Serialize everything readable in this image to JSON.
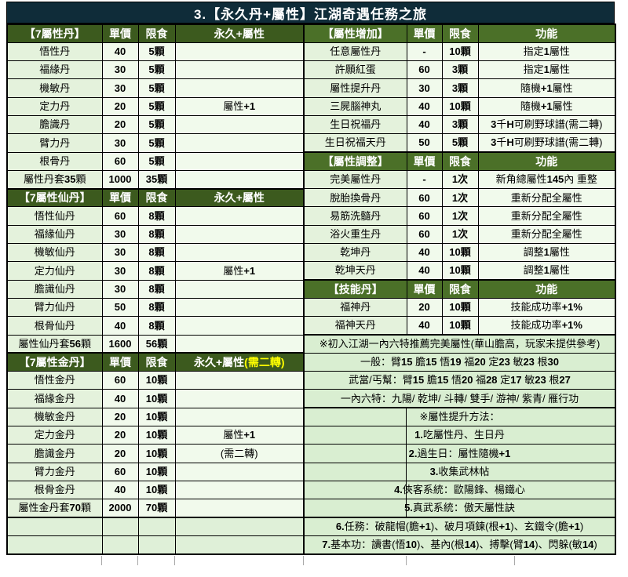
{
  "title": "3.【永久丹+屬性】江湖奇遇任務之旅",
  "title_bar_color": "#0f2c39",
  "left_header_color": "#3c5a1e",
  "right_header_color": "#4b7028",
  "highlight_color": "#ffff00",
  "left_sections": [
    {
      "header": [
        "【7屬性丹】",
        "單價",
        "限食",
        "永久+屬性"
      ],
      "header_highlight": "",
      "rows": [
        [
          "悟性丹",
          "40",
          "5顆",
          ""
        ],
        [
          "福緣丹",
          "30",
          "5顆",
          ""
        ],
        [
          "機敏丹",
          "30",
          "5顆",
          ""
        ],
        [
          "定力丹",
          "20",
          "5顆",
          "屬性+1"
        ],
        [
          "膽識丹",
          "20",
          "5顆",
          ""
        ],
        [
          "臂力丹",
          "30",
          "5顆",
          ""
        ],
        [
          "根骨丹",
          "60",
          "5顆",
          ""
        ],
        [
          "屬性丹套35顆",
          "1000",
          "35顆",
          ""
        ]
      ]
    },
    {
      "header": [
        "【7屬性仙丹】",
        "單價",
        "限食",
        "永久+屬性"
      ],
      "header_highlight": "",
      "rows": [
        [
          "悟性仙丹",
          "60",
          "8顆",
          ""
        ],
        [
          "福緣仙丹",
          "30",
          "8顆",
          ""
        ],
        [
          "機敏仙丹",
          "30",
          "8顆",
          ""
        ],
        [
          "定力仙丹",
          "30",
          "8顆",
          "屬性+1"
        ],
        [
          "膽識仙丹",
          "30",
          "8顆",
          ""
        ],
        [
          "臂力仙丹",
          "50",
          "8顆",
          ""
        ],
        [
          "根骨仙丹",
          "40",
          "8顆",
          ""
        ],
        [
          "屬性仙丹套56顆",
          "1600",
          "56顆",
          ""
        ]
      ]
    },
    {
      "header": [
        "【7屬性金丹】",
        "單價",
        "限食",
        "永久+屬性"
      ],
      "header_highlight": "(需二轉)",
      "rows": [
        [
          "悟性金丹",
          "60",
          "10顆",
          ""
        ],
        [
          "福緣金丹",
          "40",
          "10顆",
          ""
        ],
        [
          "機敏金丹",
          "20",
          "10顆",
          ""
        ],
        [
          "定力金丹",
          "20",
          "10顆",
          "屬性+1"
        ],
        [
          "膽識金丹",
          "20",
          "10顆",
          "(需二轉)"
        ],
        [
          "臂力金丹",
          "60",
          "10顆",
          ""
        ],
        [
          "根骨金丹",
          "40",
          "10顆",
          ""
        ],
        [
          "屬性金丹套70顆",
          "2000",
          "70顆",
          ""
        ]
      ]
    }
  ],
  "left_empty_rows": 2,
  "right_sections": [
    {
      "header": [
        "【屬性增加】",
        "單價",
        "限食",
        "功能"
      ],
      "header_highlight": "",
      "rows": [
        [
          "任意屬性丹",
          "-",
          "10顆",
          "指定1屬性"
        ],
        [
          "許願紅蛋",
          "60",
          "3顆",
          "指定1屬性"
        ],
        [
          "屬性提升丹",
          "30",
          "3顆",
          "隨機+1屬性"
        ],
        [
          "三屍腦神丸",
          "40",
          "10顆",
          "隨機+1屬性"
        ],
        [
          "生日祝福丹",
          "40",
          "3顆",
          "3千H可刷野球譜(需二轉)"
        ],
        [
          "生日祝福天丹",
          "50",
          "5顆",
          "3千H可刷野球譜(需二轉)"
        ]
      ]
    },
    {
      "header": [
        "【屬性調整】",
        "單價",
        "限食",
        "功能"
      ],
      "header_highlight": "",
      "rows": [
        [
          "完美屬性丹",
          "-",
          "1次",
          "新角總屬性145內 重整"
        ],
        [
          "脫胎換骨丹",
          "60",
          "1次",
          "重新分配全屬性"
        ],
        [
          "易筋洗髓丹",
          "60",
          "1次",
          "重新分配全屬性"
        ],
        [
          "浴火重生丹",
          "60",
          "1次",
          "重新分配全屬性"
        ],
        [
          "乾坤丹",
          "40",
          "10顆",
          "調整1屬性"
        ],
        [
          "乾坤天丹",
          "40",
          "10顆",
          "調整1屬性"
        ]
      ]
    },
    {
      "header": [
        "【技能丹】",
        "單價",
        "限食",
        "功能"
      ],
      "header_highlight": "",
      "rows": [
        [
          "福神丹",
          "20",
          "10顆",
          "技能成功率+1%"
        ],
        [
          "福神天丹",
          "40",
          "10顆",
          "技能成功率+1%"
        ]
      ]
    }
  ],
  "notes": [
    {
      "text": "※初入江湖一內六特推薦完美屬性(華山膽高，玩家未提供參考)",
      "divider": false,
      "thick_top": true
    },
    {
      "text": "一般：臂15 膽15 悟19 福20 定23 敏23 根30",
      "divider": false,
      "thick_top": false
    },
    {
      "text": "武當/丐幫：臂15 膽15 悟20 福28 定17 敏23 根27",
      "divider": false,
      "thick_top": false
    },
    {
      "text": "一內六特：九陽/ 乾坤/ 斗轉/ 雙手/ 游神/ 紫青/ 雁行功",
      "divider": false,
      "thick_top": false
    },
    {
      "text": "※屬性提升方法：",
      "divider": true,
      "thick_top": true
    },
    {
      "text": "1.吃屬性丹、生日丹",
      "divider": true,
      "thick_top": false
    },
    {
      "text": "2.過生日：屬性隨機+1",
      "divider": true,
      "thick_top": false
    },
    {
      "text": "3.收集武林帖",
      "divider": true,
      "thick_top": false
    },
    {
      "text": "4.俠客系統：歐陽鋒、楊鐵心",
      "divider": true,
      "thick_top": false
    },
    {
      "text": "5.真武系統：傲天屬性訣",
      "divider": true,
      "thick_top": false
    },
    {
      "text": "6.任務：破龍帽(膽+1)、破月項鍊(根+1)、玄鐵令(膽+1)",
      "divider": false,
      "thick_top": true
    },
    {
      "text": "7.基本功：讀書(悟10)、基內(根14)、搏擊(臂14)、閃躲(敏14)",
      "divider": false,
      "thick_top": false
    }
  ],
  "gridline_stub_positions": [
    129,
    175,
    222,
    386,
    517,
    655
  ]
}
